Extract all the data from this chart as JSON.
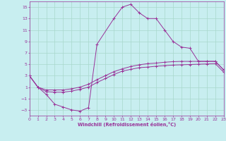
{
  "xlabel": "Windchill (Refroidissement éolien,°C)",
  "background_color": "#c8eef0",
  "grid_color": "#a8d8cc",
  "line_color": "#993399",
  "xlim": [
    0,
    23
  ],
  "ylim": [
    -4,
    16
  ],
  "xticks": [
    0,
    1,
    2,
    3,
    4,
    5,
    6,
    7,
    8,
    9,
    10,
    11,
    12,
    13,
    14,
    15,
    16,
    17,
    18,
    19,
    20,
    21,
    22,
    23
  ],
  "yticks": [
    -3,
    -1,
    1,
    3,
    5,
    7,
    9,
    11,
    13,
    15
  ],
  "curve3_x": [
    0,
    1,
    2,
    3,
    4,
    5,
    6,
    7,
    8,
    10,
    11,
    12,
    13,
    14,
    15,
    16,
    17,
    18,
    19,
    20,
    21,
    22,
    23
  ],
  "curve3_y": [
    3.0,
    1.0,
    -0.3,
    -2.0,
    -2.5,
    -3.0,
    -3.2,
    -2.6,
    8.5,
    13.0,
    15.0,
    15.5,
    14.0,
    13.0,
    13.0,
    11.0,
    9.0,
    8.0,
    7.8,
    5.5,
    5.5,
    5.5,
    4.0
  ],
  "curve1_x": [
    0,
    1,
    2,
    3,
    4,
    5,
    6,
    7,
    8,
    9,
    10,
    11,
    12,
    13,
    14,
    15,
    16,
    17,
    18,
    19,
    20,
    21,
    22,
    23
  ],
  "curve1_y": [
    3.0,
    1.0,
    0.5,
    0.5,
    0.5,
    0.7,
    1.0,
    1.5,
    2.3,
    3.0,
    3.7,
    4.2,
    4.6,
    4.9,
    5.1,
    5.2,
    5.35,
    5.45,
    5.5,
    5.5,
    5.5,
    5.5,
    5.5,
    4.0
  ],
  "curve2_x": [
    0,
    1,
    2,
    3,
    4,
    5,
    6,
    7,
    8,
    9,
    10,
    11,
    12,
    13,
    14,
    15,
    16,
    17,
    18,
    19,
    20,
    21,
    22,
    23
  ],
  "curve2_y": [
    3.0,
    1.0,
    0.2,
    0.1,
    0.1,
    0.3,
    0.6,
    1.0,
    1.8,
    2.5,
    3.2,
    3.8,
    4.1,
    4.4,
    4.5,
    4.65,
    4.75,
    4.85,
    4.9,
    4.95,
    5.0,
    5.05,
    5.1,
    3.6
  ]
}
